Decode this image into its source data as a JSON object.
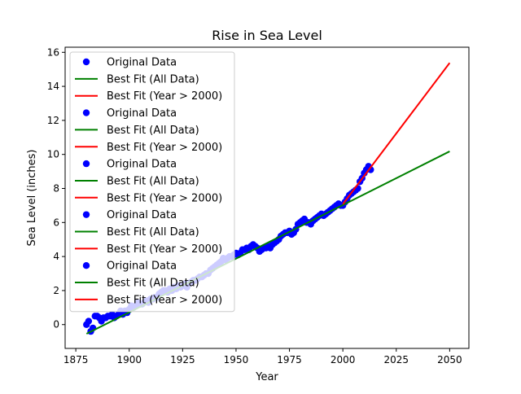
{
  "chart_data": {
    "type": "scatter",
    "title": "Rise in Sea Level",
    "xlabel": "Year",
    "ylabel": "Sea Level (inches)",
    "xlim": [
      1870,
      2059
    ],
    "ylim": [
      -1.4,
      16.3
    ],
    "xticks": [
      1875,
      1900,
      1925,
      1950,
      1975,
      2000,
      2025,
      2050
    ],
    "yticks": [
      0,
      2,
      4,
      6,
      8,
      10,
      12,
      14,
      16
    ],
    "grid": false,
    "legend_position": "upper-left",
    "colors": {
      "scatter": "#0000ff",
      "fit_all": "#008000",
      "fit_recent": "#ff0000"
    },
    "series": [
      {
        "name": "Original Data",
        "kind": "scatter",
        "x": [
          1880,
          1881,
          1882,
          1883,
          1884,
          1885,
          1886,
          1887,
          1888,
          1889,
          1890,
          1891,
          1892,
          1893,
          1894,
          1895,
          1896,
          1897,
          1898,
          1899,
          1900,
          1901,
          1902,
          1903,
          1904,
          1905,
          1906,
          1907,
          1908,
          1909,
          1910,
          1911,
          1912,
          1913,
          1914,
          1915,
          1916,
          1917,
          1918,
          1919,
          1920,
          1921,
          1922,
          1923,
          1924,
          1925,
          1926,
          1927,
          1928,
          1929,
          1930,
          1931,
          1932,
          1933,
          1934,
          1935,
          1936,
          1937,
          1938,
          1939,
          1940,
          1941,
          1942,
          1943,
          1944,
          1945,
          1946,
          1947,
          1948,
          1949,
          1950,
          1951,
          1952,
          1953,
          1954,
          1955,
          1956,
          1957,
          1958,
          1959,
          1960,
          1961,
          1962,
          1963,
          1964,
          1965,
          1966,
          1967,
          1968,
          1969,
          1970,
          1971,
          1972,
          1973,
          1974,
          1975,
          1976,
          1977,
          1978,
          1979,
          1980,
          1981,
          1982,
          1983,
          1984,
          1985,
          1986,
          1987,
          1988,
          1989,
          1990,
          1991,
          1992,
          1993,
          1994,
          1995,
          1996,
          1997,
          1998,
          1999,
          2000,
          2001,
          2002,
          2003,
          2004,
          2005,
          2006,
          2007,
          2008,
          2009,
          2010,
          2011,
          2012,
          2013
        ],
        "y": [
          0.0,
          0.2,
          -0.4,
          -0.2,
          0.5,
          0.5,
          0.4,
          0.2,
          0.4,
          0.4,
          0.5,
          0.5,
          0.6,
          0.4,
          0.5,
          0.6,
          0.8,
          0.6,
          0.8,
          0.7,
          0.9,
          1.1,
          1.0,
          1.1,
          1.3,
          1.2,
          1.2,
          1.3,
          1.4,
          1.3,
          1.5,
          1.5,
          1.6,
          1.6,
          1.8,
          1.9,
          2.0,
          2.0,
          1.9,
          2.1,
          2.0,
          2.2,
          2.1,
          2.3,
          2.2,
          2.3,
          2.4,
          2.2,
          2.4,
          2.5,
          2.6,
          2.6,
          2.7,
          2.8,
          2.8,
          2.9,
          3.0,
          3.0,
          3.2,
          3.3,
          3.4,
          3.5,
          3.6,
          3.7,
          3.9,
          3.8,
          3.9,
          4.0,
          4.0,
          4.1,
          4.2,
          4.1,
          4.2,
          4.4,
          4.4,
          4.5,
          4.4,
          4.6,
          4.7,
          4.6,
          4.5,
          4.3,
          4.4,
          4.5,
          4.5,
          4.6,
          4.5,
          4.7,
          4.8,
          4.9,
          5.0,
          5.2,
          5.3,
          5.4,
          5.4,
          5.5,
          5.3,
          5.4,
          5.6,
          5.9,
          6.0,
          6.1,
          6.2,
          6.0,
          6.0,
          5.9,
          6.1,
          6.2,
          6.3,
          6.4,
          6.5,
          6.4,
          6.5,
          6.6,
          6.7,
          6.8,
          6.9,
          7.0,
          7.1,
          7.0,
          7.0,
          7.2,
          7.4,
          7.6,
          7.7,
          7.8,
          7.9,
          8.0,
          8.4,
          8.6,
          8.9,
          9.1,
          9.3,
          9.1
        ]
      },
      {
        "name": "Best Fit (All Data)",
        "kind": "line",
        "x": [
          1880,
          2050
        ],
        "y": [
          -0.54,
          10.18
        ]
      },
      {
        "name": "Best Fit (Year > 2000)",
        "kind": "line",
        "x": [
          2000,
          2050
        ],
        "y": [
          7.08,
          15.38
        ]
      }
    ],
    "legend_entries": [
      "Original Data",
      "Best Fit (All Data)",
      "Best Fit (Year > 2000)",
      "Original Data",
      "Best Fit (All Data)",
      "Best Fit (Year > 2000)",
      "Original Data",
      "Best Fit (All Data)",
      "Best Fit (Year > 2000)",
      "Original Data",
      "Best Fit (All Data)",
      "Best Fit (Year > 2000)",
      "Original Data",
      "Best Fit (All Data)",
      "Best Fit (Year > 2000)"
    ]
  }
}
